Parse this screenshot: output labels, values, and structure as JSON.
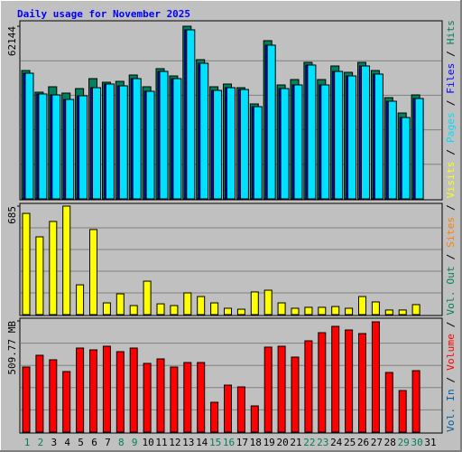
{
  "chart_data": [
    {
      "type": "bar",
      "title": "Daily usage for November 2025",
      "title_color": "#0000ff",
      "ylim": [
        0,
        62144
      ],
      "yticks": [
        62144
      ],
      "legend_separator": " / ",
      "series": [
        {
          "name": "Hits",
          "color": "#00805c",
          "values": [
            46200,
            38400,
            40350,
            38070,
            39700,
            43280,
            41980,
            42300,
            44580,
            40350,
            46860,
            44250,
            62144,
            50110,
            40350,
            41330,
            40020,
            34170,
            56940,
            41000,
            42950,
            49130,
            42950,
            47830,
            45550,
            49130,
            46200,
            36440,
            30910,
            37420,
            null
          ]
        },
        {
          "name": "Files",
          "color": "#0000ff",
          "values": [
            45230,
            37750,
            37420,
            35790,
            37100,
            40020,
            41330,
            40680,
            43280,
            38720,
            45880,
            43280,
            60850,
            48810,
            39050,
            40020,
            39370,
            33190,
            55320,
            39700,
            41000,
            48160,
            41000,
            45880,
            44250,
            47830,
            44910,
            35140,
            29290,
            36120,
            null
          ]
        },
        {
          "name": "Pages",
          "color": "#00e0ff",
          "values": [
            45230,
            37750,
            37420,
            35790,
            37100,
            40020,
            41330,
            40680,
            43280,
            38720,
            45880,
            43280,
            60850,
            48810,
            39050,
            40020,
            39370,
            33190,
            55320,
            39700,
            41000,
            48160,
            41000,
            45880,
            44250,
            47830,
            44910,
            35140,
            29290,
            36120,
            null
          ]
        }
      ]
    },
    {
      "type": "bar",
      "ylim": [
        0,
        685
      ],
      "yticks": [
        685
      ],
      "series": [
        {
          "name": "Visits",
          "color": "#ffff00",
          "values": [
            639,
            491,
            588,
            685,
            188,
            537,
            74,
            131,
            57,
            211,
            68,
            57,
            137,
            114,
            74,
            40,
            34,
            143,
            154,
            74,
            40,
            46,
            46,
            51,
            40,
            114,
            80,
            29,
            29,
            63,
            null
          ]
        },
        {
          "name": "Sites",
          "color": "#ff8000"
        },
        {
          "name": "Vol. Out",
          "color": "#00805c"
        }
      ]
    },
    {
      "type": "bar",
      "ylim": [
        0,
        509.77
      ],
      "yticks": [
        {
          "value": 509.77,
          "label": "509.77 MB"
        }
      ],
      "categories": [
        "1",
        "2",
        "3",
        "4",
        "5",
        "6",
        "7",
        "8",
        "9",
        "10",
        "11",
        "12",
        "13",
        "14",
        "15",
        "16",
        "17",
        "18",
        "19",
        "20",
        "21",
        "22",
        "23",
        "24",
        "25",
        "26",
        "27",
        "28",
        "29",
        "30",
        "31"
      ],
      "category_colors": [
        "#00805c",
        "#00805c",
        "#000000",
        "#000000",
        "#000000",
        "#000000",
        "#000000",
        "#00805c",
        "#00805c",
        "#000000",
        "#000000",
        "#000000",
        "#000000",
        "#000000",
        "#00805c",
        "#00805c",
        "#000000",
        "#000000",
        "#000000",
        "#000000",
        "#000000",
        "#00805c",
        "#00805c",
        "#000000",
        "#000000",
        "#000000",
        "#000000",
        "#000000",
        "#00805c",
        "#00805c",
        "#000000"
      ],
      "series": [
        {
          "name": "Volume",
          "color": "#ff0000",
          "values": [
            298.4,
            352.3,
            331.6,
            277.7,
            385.4,
            377.1,
            393.7,
            368.9,
            385.4,
            315.0,
            335.7,
            298.4,
            319.1,
            319.1,
            136.8,
            215.5,
            207.2,
            120.2,
            389.6,
            393.7,
            344.0,
            418.6,
            455.9,
            484.9,
            468.3,
            451.8,
            505.6,
            273.5,
            190.6,
            281.8,
            null
          ]
        },
        {
          "name": "Vol. In",
          "color": "#00609f"
        }
      ]
    }
  ]
}
